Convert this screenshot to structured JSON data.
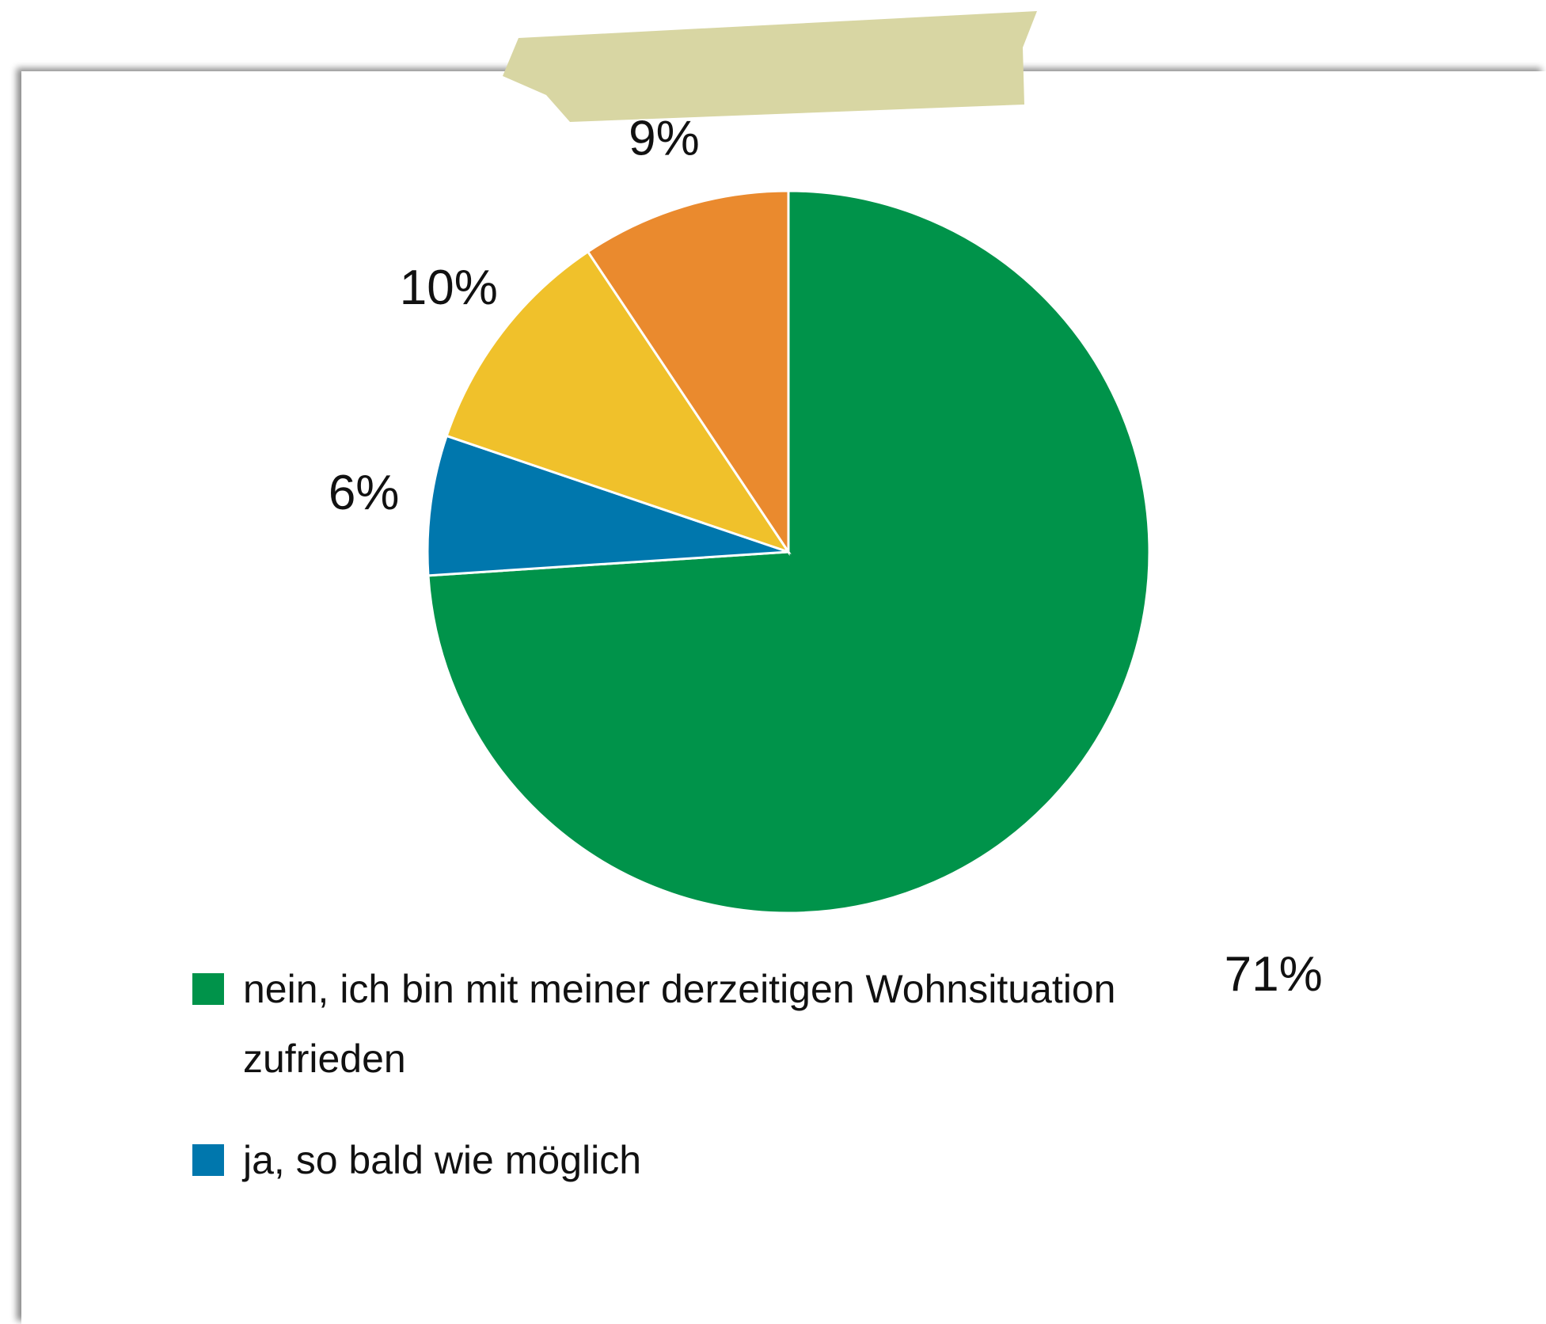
{
  "chart_data": {
    "type": "pie",
    "categories": [
      "nein, ich bin mit meiner derzeitigen Wohnsituation zufrieden",
      "ja, so bald wie möglich",
      null,
      null
    ],
    "values": [
      71,
      6,
      10,
      9
    ],
    "value_labels": [
      "71%",
      "6%",
      "10%",
      "9%"
    ],
    "colors": [
      "#00934a",
      "#0077ad",
      "#f0c12b",
      "#ea8a2e"
    ]
  }
}
